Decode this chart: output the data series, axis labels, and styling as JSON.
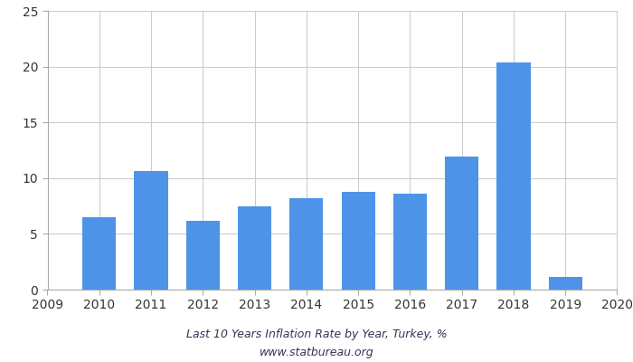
{
  "bar_years": [
    2010,
    2011,
    2012,
    2013,
    2014,
    2015,
    2016,
    2017,
    2018,
    2019
  ],
  "values": [
    6.5,
    10.6,
    6.2,
    7.5,
    8.2,
    8.8,
    8.6,
    11.9,
    20.4,
    1.1
  ],
  "bar_color": "#4d94e8",
  "background_color": "#ffffff",
  "title": "Last 10 Years Inflation Rate by Year, Turkey, %",
  "subtitle": "www.statbureau.org",
  "xlim": [
    2009,
    2020
  ],
  "ylim": [
    0,
    25
  ],
  "yticks": [
    0,
    5,
    10,
    15,
    20,
    25
  ],
  "xticks": [
    2009,
    2010,
    2011,
    2012,
    2013,
    2014,
    2015,
    2016,
    2017,
    2018,
    2019,
    2020
  ],
  "title_fontsize": 9,
  "subtitle_fontsize": 9,
  "tick_fontsize": 10,
  "bar_width": 0.65,
  "grid_color": "#cccccc",
  "spine_color": "#aaaaaa"
}
